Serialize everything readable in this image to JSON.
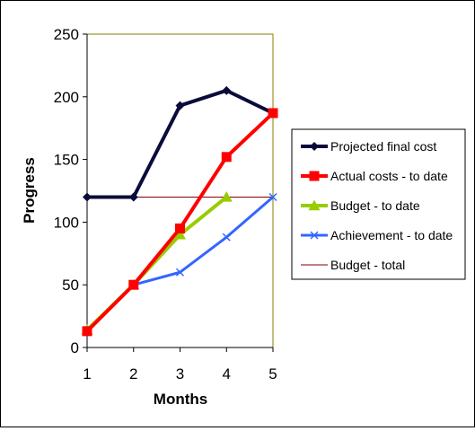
{
  "chart_data": {
    "type": "line",
    "xlabel": "Months",
    "ylabel": "Progress",
    "x": [
      1,
      2,
      3,
      4,
      5
    ],
    "xlim": [
      1,
      5
    ],
    "ylim": [
      0,
      250
    ],
    "yticks": [
      0,
      50,
      100,
      150,
      200,
      250
    ],
    "grid": false,
    "legend_position": "right",
    "series": [
      {
        "name": "Projected final cost",
        "color": "#0b0b3b",
        "marker": "diamond",
        "x": [
          1,
          2,
          3,
          4,
          5
        ],
        "values": [
          120,
          120,
          193,
          205,
          187
        ]
      },
      {
        "name": "Actual costs - to date",
        "color": "#ff0000",
        "marker": "square",
        "x": [
          1,
          2,
          3,
          4,
          5
        ],
        "values": [
          13,
          50,
          95,
          152,
          187
        ]
      },
      {
        "name": "Budget - to date",
        "color": "#99cc00",
        "marker": "triangle",
        "x": [
          1,
          2,
          3,
          4
        ],
        "values": [
          14,
          50,
          90,
          120
        ]
      },
      {
        "name": "Achievement - to date",
        "color": "#3366ff",
        "marker": "x",
        "x": [
          1,
          2,
          3,
          4,
          5
        ],
        "values": [
          13,
          50,
          60,
          88,
          120
        ]
      },
      {
        "name": "Budget - total",
        "color": "#800000",
        "marker": "none",
        "line": "constant",
        "x": [
          1,
          5
        ],
        "values": [
          120,
          120
        ]
      }
    ]
  }
}
